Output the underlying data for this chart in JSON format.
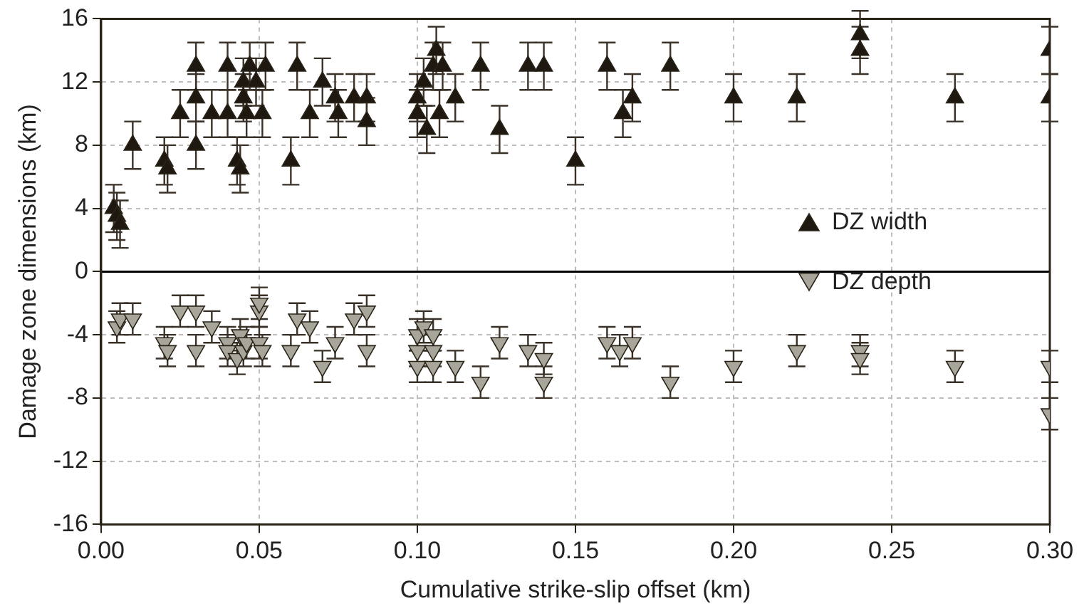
{
  "chart_data": {
    "type": "scatter",
    "xlabel": "Cumulative strike-slip offset (km)",
    "ylabel": "Damage zone dimensions (km)",
    "xlim": [
      0,
      0.3
    ],
    "xticks": [
      {
        "value": 0,
        "label": "0.00"
      },
      {
        "value": 0.05,
        "label": "0.05"
      },
      {
        "value": 0.1,
        "label": "0.10"
      },
      {
        "value": 0.15,
        "label": "0.15"
      },
      {
        "value": 0.2,
        "label": "0.20"
      },
      {
        "value": 0.25,
        "label": "0.25"
      },
      {
        "value": 0.3,
        "label": "0.30"
      }
    ],
    "ylim": [
      -16,
      16
    ],
    "yticks": [
      -16,
      -12,
      -8,
      -4,
      0,
      4,
      8,
      12,
      16
    ],
    "grid": true,
    "legend": "right",
    "ref_lines": [
      {
        "axis": "y",
        "value": 0,
        "color": "#000000",
        "line_style": "solid"
      }
    ],
    "series": [
      {
        "name": "DZ width",
        "color": "#1e1810",
        "marker": "triangle",
        "x": [
          0.004,
          0.005,
          0.006,
          0.01,
          0.02,
          0.021,
          0.025,
          0.03,
          0.03,
          0.03,
          0.035,
          0.04,
          0.04,
          0.043,
          0.044,
          0.045,
          0.045,
          0.046,
          0.047,
          0.049,
          0.052,
          0.051,
          0.06,
          0.062,
          0.066,
          0.07,
          0.074,
          0.075,
          0.08,
          0.084,
          0.084,
          0.1,
          0.1,
          0.102,
          0.103,
          0.105,
          0.106,
          0.108,
          0.107,
          0.112,
          0.12,
          0.126,
          0.135,
          0.14,
          0.15,
          0.16,
          0.165,
          0.168,
          0.18,
          0.2,
          0.22,
          0.24,
          0.24,
          0.27,
          0.3,
          0.3
        ],
        "values": [
          4,
          3.5,
          3,
          8,
          7,
          6.5,
          10,
          13,
          11,
          8,
          10,
          13,
          10,
          7,
          6.5,
          12,
          11,
          10,
          13,
          12,
          13,
          10,
          7,
          13,
          10,
          12,
          11,
          10,
          11,
          11,
          9.5,
          11,
          10,
          12,
          9,
          13,
          14,
          13,
          10,
          11,
          13,
          9,
          13,
          13,
          7,
          13,
          10,
          11,
          13,
          11,
          11,
          15,
          14,
          11,
          14,
          11
        ],
        "errors": [
          1.5,
          1.5,
          1.5,
          1.5,
          1.5,
          1.5,
          1.5,
          1.5,
          1.5,
          1.5,
          1.5,
          1.5,
          1.5,
          1.5,
          1.5,
          1.5,
          1.5,
          1.5,
          1.5,
          1.5,
          1.5,
          1.5,
          1.5,
          1.5,
          1.5,
          1.5,
          1.5,
          1.5,
          1.5,
          1.5,
          1.5,
          1.5,
          1.5,
          1.5,
          1.5,
          1.5,
          1.5,
          1.5,
          1.5,
          1.5,
          1.5,
          1.5,
          1.5,
          1.5,
          1.5,
          1.5,
          1.5,
          1.5,
          1.5,
          1.5,
          1.5,
          1.5,
          1.5,
          1.5,
          1.5,
          1.5
        ]
      },
      {
        "name": "DZ depth",
        "color": "#a8a69a",
        "marker": "triangle-down",
        "x": [
          0.005,
          0.006,
          0.01,
          0.02,
          0.021,
          0.025,
          0.03,
          0.03,
          0.035,
          0.04,
          0.04,
          0.043,
          0.044,
          0.045,
          0.046,
          0.05,
          0.05,
          0.05,
          0.051,
          0.06,
          0.062,
          0.066,
          0.07,
          0.074,
          0.08,
          0.084,
          0.084,
          0.1,
          0.1,
          0.1,
          0.102,
          0.105,
          0.105,
          0.105,
          0.112,
          0.12,
          0.126,
          0.135,
          0.14,
          0.14,
          0.16,
          0.164,
          0.168,
          0.18,
          0.2,
          0.22,
          0.24,
          0.24,
          0.27,
          0.3,
          0.3
        ],
        "values": [
          -3.5,
          -3,
          -3,
          -4.5,
          -5,
          -2.5,
          -2.5,
          -5,
          -3.5,
          -4.5,
          -5,
          -5.5,
          -4,
          -5,
          -4.5,
          -2.5,
          -2,
          -4.5,
          -5,
          -5,
          -3,
          -3.5,
          -6,
          -4.5,
          -3,
          -2.5,
          -5,
          -4,
          -5,
          -6,
          -3.5,
          -4,
          -5,
          -6,
          -6,
          -7,
          -4.5,
          -5,
          -5.5,
          -7,
          -4.5,
          -5,
          -4.5,
          -7,
          -6,
          -5,
          -5,
          -5.5,
          -6,
          -6,
          -9
        ],
        "errors": [
          1,
          1,
          1,
          1,
          1,
          1,
          1,
          1,
          1,
          1,
          1,
          1,
          1,
          1,
          1,
          1,
          1,
          1,
          1,
          1,
          1,
          1,
          1,
          1,
          1,
          1,
          1,
          1,
          1,
          1,
          1,
          1,
          1,
          1,
          1,
          1,
          1,
          1,
          1,
          1,
          1,
          1,
          1,
          1,
          1,
          1,
          1,
          1,
          1,
          1,
          1
        ]
      }
    ]
  }
}
